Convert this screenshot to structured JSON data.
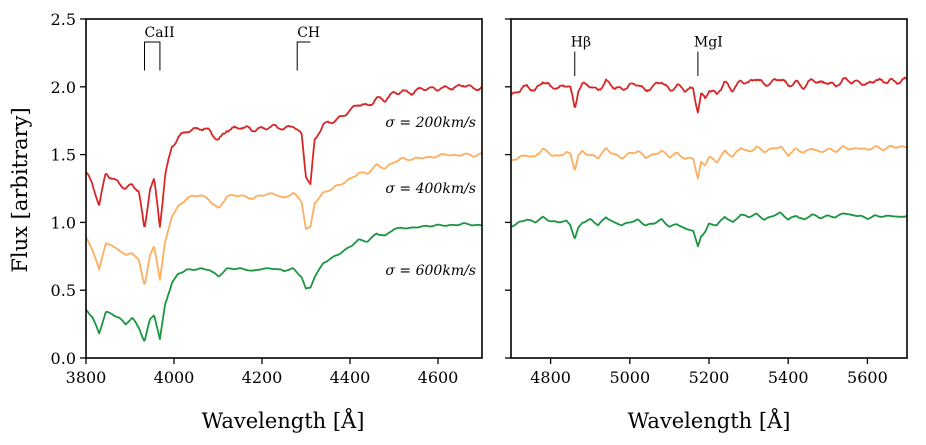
{
  "chart_data": [
    {
      "type": "line",
      "panel": "left",
      "xlabel": "Wavelength [Å]",
      "ylabel": "Flux [arbitrary]",
      "xlim": [
        3800,
        4700
      ],
      "ylim": [
        0.0,
        2.5
      ],
      "xticks": [
        3800,
        4000,
        4200,
        4400,
        4600
      ],
      "xtick_labels": [
        "3800",
        "4000",
        "4200",
        "4400",
        "4600"
      ],
      "yticks": [
        0.0,
        0.5,
        1.0,
        1.5,
        2.0,
        2.5
      ],
      "ytick_labels": [
        "0.0",
        "0.5",
        "1.0",
        "1.5",
        "2.0",
        "2.5"
      ],
      "series": [
        {
          "name": "σ = 200km/s",
          "label_text": "σ = 200km/s",
          "color": "#d62728",
          "offset": 1.0,
          "smoothing": 2,
          "x": [
            3800,
            3815,
            3830,
            3845,
            3860,
            3875,
            3890,
            3905,
            3920,
            3933,
            3945,
            3955,
            3968,
            3980,
            3995,
            4010,
            4030,
            4060,
            4080,
            4101,
            4120,
            4150,
            4180,
            4200,
            4230,
            4250,
            4270,
            4290,
            4300,
            4310,
            4320,
            4340,
            4360,
            4380,
            4400,
            4420,
            4440,
            4460,
            4480,
            4500,
            4520,
            4540,
            4560,
            4580,
            4600,
            4620,
            4640,
            4660,
            4680,
            4700
          ],
          "y": [
            1.38,
            1.28,
            1.12,
            1.36,
            1.32,
            1.3,
            1.25,
            1.28,
            1.22,
            0.94,
            1.25,
            1.32,
            0.98,
            1.35,
            1.55,
            1.62,
            1.68,
            1.7,
            1.67,
            1.6,
            1.69,
            1.7,
            1.68,
            1.7,
            1.71,
            1.68,
            1.72,
            1.65,
            1.35,
            1.28,
            1.6,
            1.72,
            1.75,
            1.78,
            1.82,
            1.87,
            1.86,
            1.92,
            1.9,
            1.95,
            1.97,
            1.96,
            1.98,
            1.98,
            1.99,
            2.0,
            1.99,
            2.01,
            1.99,
            2.0
          ]
        },
        {
          "name": "σ = 400km/s",
          "label_text": "σ = 400km/s",
          "color": "#fdae61",
          "offset": 0.5,
          "smoothing": 4,
          "x": [
            3800,
            3815,
            3830,
            3845,
            3860,
            3875,
            3890,
            3905,
            3920,
            3933,
            3945,
            3955,
            3968,
            3980,
            3995,
            4010,
            4030,
            4060,
            4080,
            4101,
            4120,
            4150,
            4180,
            4200,
            4230,
            4250,
            4270,
            4290,
            4300,
            4310,
            4320,
            4340,
            4360,
            4380,
            4400,
            4420,
            4440,
            4460,
            4480,
            4500,
            4520,
            4540,
            4560,
            4580,
            4600,
            4620,
            4640,
            4660,
            4680,
            4700
          ],
          "y": [
            0.88,
            0.8,
            0.65,
            0.86,
            0.82,
            0.8,
            0.75,
            0.78,
            0.72,
            0.54,
            0.75,
            0.82,
            0.58,
            0.85,
            1.05,
            1.12,
            1.18,
            1.2,
            1.17,
            1.1,
            1.19,
            1.2,
            1.18,
            1.2,
            1.21,
            1.18,
            1.22,
            1.15,
            0.95,
            0.96,
            1.15,
            1.22,
            1.25,
            1.28,
            1.32,
            1.37,
            1.36,
            1.42,
            1.4,
            1.45,
            1.47,
            1.46,
            1.48,
            1.48,
            1.49,
            1.5,
            1.49,
            1.51,
            1.49,
            1.5
          ]
        },
        {
          "name": "σ = 600km/s",
          "label_text": "σ = 600km/s",
          "color": "#1a9641",
          "offset": 0.0,
          "smoothing": 7,
          "x": [
            3800,
            3815,
            3830,
            3845,
            3860,
            3875,
            3890,
            3905,
            3920,
            3933,
            3945,
            3955,
            3968,
            3980,
            3995,
            4010,
            4030,
            4060,
            4080,
            4101,
            4120,
            4150,
            4180,
            4200,
            4230,
            4250,
            4270,
            4290,
            4300,
            4310,
            4320,
            4340,
            4360,
            4380,
            4400,
            4420,
            4440,
            4460,
            4480,
            4500,
            4520,
            4540,
            4560,
            4580,
            4600,
            4620,
            4640,
            4660,
            4680,
            4700
          ],
          "y": [
            0.36,
            0.3,
            0.18,
            0.34,
            0.32,
            0.3,
            0.25,
            0.3,
            0.22,
            0.12,
            0.28,
            0.32,
            0.14,
            0.4,
            0.55,
            0.62,
            0.65,
            0.66,
            0.65,
            0.6,
            0.66,
            0.66,
            0.64,
            0.66,
            0.66,
            0.64,
            0.66,
            0.6,
            0.51,
            0.52,
            0.6,
            0.7,
            0.74,
            0.78,
            0.82,
            0.87,
            0.86,
            0.92,
            0.9,
            0.95,
            0.96,
            0.96,
            0.97,
            0.97,
            0.98,
            0.98,
            0.98,
            0.99,
            0.98,
            0.98
          ]
        }
      ],
      "annotations": [
        {
          "text": "CaII",
          "type": "doublet",
          "x": [
            3933,
            3968
          ],
          "bar_y": 2.33,
          "line_bottom_y": 2.12
        },
        {
          "text": "CH",
          "type": "step",
          "x": [
            4280,
            4310
          ],
          "bar_y": 2.33,
          "line_bottom_y": 2.12
        }
      ]
    },
    {
      "type": "line",
      "panel": "right",
      "xlabel": "Wavelength [Å]",
      "ylabel": "",
      "xlim": [
        4700,
        5700
      ],
      "ylim": [
        0.0,
        2.5
      ],
      "xticks": [
        4800,
        5000,
        5200,
        5400,
        5600
      ],
      "xtick_labels": [
        "4800",
        "5000",
        "5200",
        "5400",
        "5600"
      ],
      "yticks": [
        0.0,
        0.5,
        1.0,
        1.5,
        2.0,
        2.5
      ],
      "series": [
        {
          "name": "σ = 200km/s",
          "color": "#d62728",
          "offset": 1.0,
          "smoothing": 2,
          "x": [
            4700,
            4720,
            4740,
            4760,
            4780,
            4800,
            4820,
            4840,
            4850,
            4861,
            4870,
            4880,
            4900,
            4920,
            4940,
            4960,
            4980,
            5000,
            5020,
            5040,
            5060,
            5080,
            5100,
            5120,
            5140,
            5160,
            5172,
            5180,
            5190,
            5200,
            5220,
            5240,
            5260,
            5280,
            5300,
            5320,
            5340,
            5360,
            5380,
            5400,
            5420,
            5440,
            5460,
            5480,
            5500,
            5520,
            5540,
            5560,
            5580,
            5600,
            5620,
            5640,
            5660,
            5680,
            5700
          ],
          "y": [
            1.94,
            1.97,
            2.0,
            1.97,
            2.05,
            2.0,
            1.98,
            2.02,
            2.0,
            1.84,
            1.98,
            2.02,
            2.0,
            1.97,
            2.05,
            2.0,
            1.97,
            2.01,
            2.03,
            1.97,
            2.0,
            2.04,
            1.98,
            2.01,
            1.97,
            1.98,
            1.82,
            1.95,
            1.92,
            1.98,
            1.94,
            2.03,
            1.98,
            2.05,
            2.02,
            2.06,
            2.02,
            2.04,
            2.06,
            2.0,
            2.04,
            2.0,
            2.05,
            2.02,
            2.04,
            2.01,
            2.05,
            2.03,
            2.04,
            2.02,
            2.05,
            2.03,
            2.05,
            2.04,
            2.06
          ]
        },
        {
          "name": "σ = 400km/s",
          "color": "#fdae61",
          "offset": 0.5,
          "smoothing": 4,
          "x": [
            4700,
            4720,
            4740,
            4760,
            4780,
            4800,
            4820,
            4840,
            4850,
            4861,
            4870,
            4880,
            4900,
            4920,
            4940,
            4960,
            4980,
            5000,
            5020,
            5040,
            5060,
            5080,
            5100,
            5120,
            5140,
            5160,
            5172,
            5180,
            5190,
            5200,
            5220,
            5240,
            5260,
            5280,
            5300,
            5320,
            5340,
            5360,
            5380,
            5400,
            5420,
            5440,
            5460,
            5480,
            5500,
            5520,
            5540,
            5560,
            5580,
            5600,
            5620,
            5640,
            5660,
            5680,
            5700
          ],
          "y": [
            1.45,
            1.48,
            1.5,
            1.48,
            1.54,
            1.5,
            1.49,
            1.52,
            1.5,
            1.38,
            1.49,
            1.52,
            1.5,
            1.48,
            1.54,
            1.5,
            1.48,
            1.51,
            1.52,
            1.48,
            1.5,
            1.53,
            1.48,
            1.51,
            1.47,
            1.48,
            1.32,
            1.44,
            1.42,
            1.48,
            1.45,
            1.53,
            1.48,
            1.55,
            1.52,
            1.56,
            1.52,
            1.54,
            1.56,
            1.5,
            1.54,
            1.51,
            1.55,
            1.52,
            1.54,
            1.52,
            1.56,
            1.54,
            1.55,
            1.53,
            1.56,
            1.54,
            1.56,
            1.55,
            1.56
          ]
        },
        {
          "name": "σ = 600km/s",
          "color": "#1a9641",
          "offset": 0.0,
          "smoothing": 7,
          "x": [
            4700,
            4720,
            4740,
            4760,
            4780,
            4800,
            4820,
            4840,
            4850,
            4861,
            4870,
            4880,
            4900,
            4920,
            4940,
            4960,
            4980,
            5000,
            5020,
            5040,
            5060,
            5080,
            5100,
            5120,
            5140,
            5160,
            5172,
            5180,
            5190,
            5200,
            5220,
            5240,
            5260,
            5280,
            5300,
            5320,
            5340,
            5360,
            5380,
            5400,
            5420,
            5440,
            5460,
            5480,
            5500,
            5520,
            5540,
            5560,
            5580,
            5600,
            5620,
            5640,
            5660,
            5680,
            5700
          ],
          "y": [
            0.97,
            1.0,
            1.02,
            1.0,
            1.04,
            1.01,
            1.0,
            1.01,
            0.98,
            0.88,
            0.96,
            1.0,
            1.02,
            0.98,
            1.04,
            1.0,
            0.98,
            1.0,
            1.02,
            0.98,
            0.99,
            1.02,
            0.97,
            0.99,
            0.95,
            0.94,
            0.82,
            0.9,
            0.93,
            0.99,
            0.98,
            1.04,
            1.0,
            1.06,
            1.04,
            1.06,
            1.02,
            1.05,
            1.07,
            1.02,
            1.05,
            1.02,
            1.06,
            1.03,
            1.05,
            1.04,
            1.07,
            1.05,
            1.05,
            1.03,
            1.05,
            1.04,
            1.05,
            1.04,
            1.05
          ]
        }
      ],
      "annotations": [
        {
          "text": "Hβ",
          "type": "line",
          "x": [
            4861
          ],
          "bar_y": 2.26,
          "line_bottom_y": 2.08
        },
        {
          "text": "MgI",
          "type": "line",
          "x": [
            5172
          ],
          "bar_y": 2.26,
          "line_bottom_y": 2.08
        }
      ]
    }
  ]
}
